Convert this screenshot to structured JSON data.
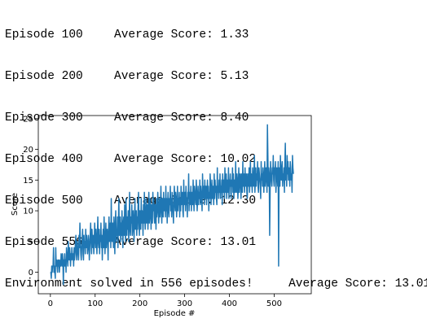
{
  "log": {
    "lines": [
      {
        "episode": "Episode 100",
        "score": "Average Score: 1.33"
      },
      {
        "episode": "Episode 200",
        "score": "Average Score: 5.13"
      },
      {
        "episode": "Episode 300",
        "score": "Average Score: 8.40"
      },
      {
        "episode": "Episode 400",
        "score": "Average Score: 10.02"
      },
      {
        "episode": "Episode 500",
        "score": "Average Score: 12.30"
      },
      {
        "episode": "Episode 556",
        "score": "Average Score: 13.01"
      }
    ],
    "solved": "Environment solved in 556 episodes!\tAverage Score: 13.01"
  },
  "chart_data": {
    "type": "line",
    "xlabel": "Episode #",
    "ylabel": "Score",
    "xlim": [
      -27,
      583
    ],
    "ylim": [
      -3.5,
      25.5
    ],
    "xticks": [
      0,
      100,
      200,
      300,
      400,
      500
    ],
    "yticks": [
      0,
      5,
      10,
      15,
      20,
      25
    ],
    "grid": false,
    "line_color": "#1f77b4",
    "series": [
      {
        "values": [
          0,
          0,
          -1,
          1,
          0,
          1,
          1,
          4,
          0,
          1,
          0,
          -1,
          4,
          1,
          2,
          1,
          0,
          2,
          1,
          2,
          0,
          1,
          2,
          1,
          3,
          2,
          1,
          3,
          2,
          -2,
          2,
          1,
          3,
          1,
          2,
          0,
          4,
          3,
          2,
          1,
          5,
          3,
          2,
          4,
          3,
          1,
          3,
          2,
          4,
          3,
          2,
          3,
          1,
          4,
          2,
          3,
          5,
          6,
          3,
          2,
          5,
          4,
          3,
          2,
          6,
          4,
          8,
          5,
          3,
          2,
          4,
          5,
          7,
          3,
          2,
          6,
          4,
          5,
          3,
          7,
          4,
          6,
          5,
          3,
          4,
          6,
          5,
          2,
          4,
          6,
          8,
          5,
          3,
          7,
          5,
          4,
          6,
          3,
          5,
          8,
          6,
          4,
          7,
          5,
          3,
          6,
          9,
          5,
          4,
          7,
          3,
          6,
          5,
          8,
          4,
          6,
          2,
          5,
          7,
          4,
          9,
          6,
          3,
          5,
          8,
          4,
          6,
          7,
          5,
          2,
          7,
          9,
          5,
          6,
          8,
          4,
          12,
          6,
          5,
          8,
          7,
          4,
          9,
          6,
          3,
          8,
          10,
          5,
          7,
          6,
          9,
          4,
          8,
          12,
          6,
          7,
          9,
          5,
          8,
          6,
          10,
          7,
          4,
          8,
          9,
          6,
          11,
          7,
          5,
          12,
          8,
          6,
          9,
          7,
          10,
          5,
          8,
          13,
          7,
          6,
          9,
          8,
          11,
          6,
          7,
          10,
          8,
          5,
          9,
          12,
          7,
          8,
          10,
          6,
          9,
          7,
          11,
          13,
          8,
          6,
          10,
          9,
          7,
          12,
          8,
          10,
          9,
          6,
          11,
          8,
          13,
          9,
          7,
          10,
          12,
          8,
          9,
          11,
          7,
          10,
          13,
          8,
          9,
          12,
          10,
          7,
          11,
          9,
          8,
          13,
          10,
          12,
          9,
          8,
          11,
          10,
          7,
          12,
          9,
          10,
          13,
          11,
          8,
          10,
          12,
          9,
          11,
          14,
          10,
          8,
          12,
          11,
          9,
          13,
          10,
          12,
          11,
          9,
          14,
          10,
          12,
          8,
          11,
          13,
          10,
          9,
          12,
          11,
          14,
          10,
          12,
          9,
          13,
          11,
          10,
          8,
          12,
          14,
          11,
          10,
          13,
          12,
          9,
          11,
          14,
          10,
          12,
          11,
          13,
          9,
          12,
          10,
          14,
          11,
          12,
          13,
          10,
          9,
          15,
          11,
          12,
          13,
          10,
          14,
          11,
          12,
          9,
          13,
          12,
          16,
          10,
          13,
          11,
          12,
          14,
          10,
          13,
          12,
          11,
          15,
          12,
          10,
          14,
          13,
          12,
          11,
          15,
          13,
          10,
          12,
          14,
          11,
          13,
          12,
          15,
          11,
          14,
          13,
          12,
          10,
          16,
          13,
          12,
          14,
          11,
          15,
          13,
          12,
          14,
          11,
          13,
          15,
          12,
          14,
          10,
          13,
          12,
          16,
          14,
          11,
          13,
          15,
          12,
          14,
          13,
          11,
          16,
          12,
          15,
          13,
          14,
          12,
          11,
          17,
          13,
          14,
          12,
          15,
          13,
          16,
          12,
          14,
          13,
          15,
          11,
          16,
          14,
          13,
          15,
          12,
          17,
          14,
          13,
          16,
          12,
          15,
          14,
          13,
          17,
          12,
          15,
          14,
          16,
          13,
          12,
          15,
          14,
          17,
          13,
          16,
          12,
          15,
          14,
          13,
          18,
          14,
          13,
          16,
          15,
          12,
          14,
          17,
          13,
          15,
          16,
          14,
          12,
          16,
          15,
          13,
          18,
          14,
          16,
          15,
          13,
          17,
          14,
          15,
          16,
          13,
          12,
          16,
          15,
          14,
          17,
          13,
          15,
          18,
          14,
          16,
          15,
          13,
          17,
          15,
          14,
          16,
          19,
          13,
          15,
          17,
          14,
          16,
          15,
          18,
          14,
          13,
          17,
          16,
          15,
          14,
          12,
          18,
          15,
          16,
          14,
          17,
          15,
          13,
          16,
          18,
          14,
          15,
          17,
          16,
          13,
          15,
          19,
          14,
          17,
          16,
          15,
          13,
          18,
          16,
          15,
          14,
          17,
          16,
          19,
          15,
          14,
          17,
          16,
          18,
          13,
          15,
          17,
          16,
          14,
          18,
          15,
          17,
          16,
          14,
          19,
          16,
          15,
          17,
          18,
          14,
          16,
          15,
          17,
          13,
          18,
          16,
          15,
          17,
          14,
          19,
          16,
          18,
          15,
          17,
          16,
          14,
          18,
          17,
          15,
          16,
          13,
          19,
          17,
          16
        ],
        "spikes": [
          {
            "x": 485,
            "y": 24
          },
          {
            "x": 490,
            "y": 6
          },
          {
            "x": 510,
            "y": 1
          },
          {
            "x": 525,
            "y": 21
          }
        ]
      }
    ]
  }
}
